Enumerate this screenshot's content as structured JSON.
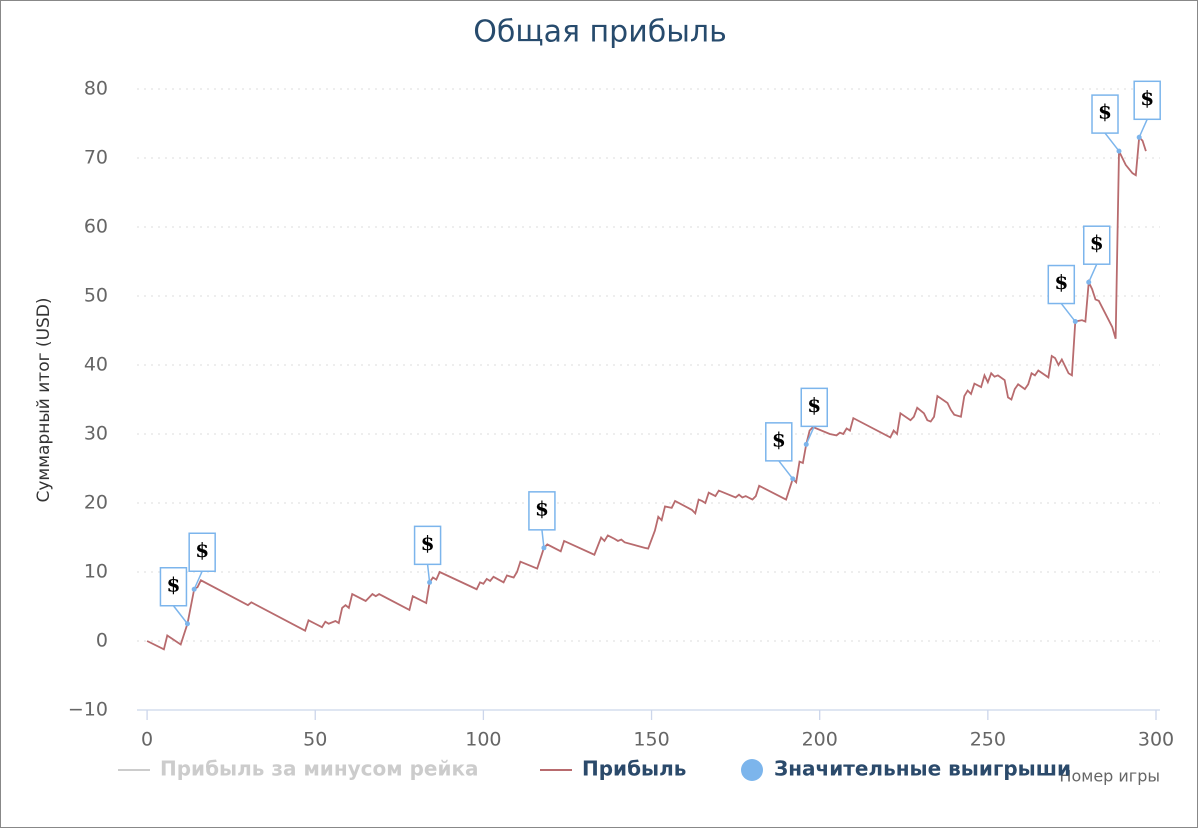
{
  "chart_data": {
    "type": "line",
    "title": "Общая прибыль",
    "y_axis_title": "Суммарный итог (USD)",
    "x_axis_title": "Номер игры",
    "xlim": [
      -3,
      300
    ],
    "xticks": [
      0,
      50,
      100,
      150,
      200,
      250,
      300
    ],
    "ylim": [
      -10,
      80
    ],
    "yticks": [
      {
        "value": -10,
        "label": "−10"
      },
      0,
      10,
      20,
      30,
      40,
      50,
      60,
      70,
      80
    ],
    "grid": true,
    "legend": "bottom",
    "series": [
      {
        "name": "Прибыль за минусом рейка",
        "type": "line",
        "color": "#cccccc",
        "visible": false,
        "x": [],
        "values": []
      },
      {
        "name": "Прибыль",
        "type": "line",
        "color": "#b86b6e",
        "visible": true,
        "x": [
          0,
          5,
          6,
          10,
          12,
          14,
          15,
          16,
          30,
          31,
          47,
          48,
          50,
          52,
          53,
          54,
          56,
          57,
          58,
          59,
          60,
          61,
          65,
          67,
          68,
          69,
          78,
          79,
          83,
          84,
          85,
          86,
          87,
          98,
          99,
          100,
          101,
          102,
          103,
          106,
          107,
          109,
          110,
          111,
          116,
          118,
          119,
          123,
          124,
          133,
          135,
          136,
          137,
          139,
          140,
          141,
          142,
          148,
          149,
          151,
          152,
          153,
          154,
          156,
          157,
          162,
          163,
          164,
          165,
          166,
          167,
          169,
          170,
          175,
          176,
          177,
          178,
          180,
          181,
          182,
          190,
          192,
          193,
          194,
          195,
          196,
          197,
          198,
          203,
          205,
          206,
          207,
          208,
          209,
          210,
          221,
          222,
          223,
          224,
          227,
          228,
          229,
          231,
          232,
          233,
          234,
          235,
          238,
          239,
          240,
          242,
          243,
          244,
          245,
          246,
          248,
          249,
          250,
          251,
          252,
          253,
          255,
          256,
          257,
          258,
          259,
          261,
          262,
          263,
          264,
          265,
          268,
          269,
          270,
          271,
          272,
          274,
          275,
          276,
          278,
          279,
          280,
          281,
          282,
          283,
          287,
          288,
          289,
          291,
          293,
          294,
          295,
          296,
          297
        ],
        "values": [
          0,
          -1.2,
          0.8,
          -0.5,
          2.5,
          7.5,
          7.8,
          8.8,
          5.2,
          5.6,
          1.5,
          3,
          2.5,
          2,
          2.8,
          2.5,
          2.9,
          2.6,
          4.8,
          5.2,
          4.8,
          6.8,
          5.8,
          6.8,
          6.5,
          6.8,
          4.5,
          6.5,
          5.5,
          8.5,
          9.2,
          8.9,
          10,
          7.5,
          8.5,
          8.3,
          9,
          8.7,
          9.3,
          8.5,
          9.5,
          9.2,
          10,
          11.5,
          10.5,
          13.5,
          14,
          13,
          14.5,
          12.5,
          15,
          14.5,
          15.3,
          14.8,
          14.5,
          14.7,
          14.3,
          13.5,
          13.4,
          16,
          18,
          17.5,
          19.5,
          19.3,
          20.3,
          19,
          18.5,
          20.5,
          20.3,
          20,
          21.5,
          21,
          21.8,
          20.8,
          21.2,
          20.8,
          21,
          20.5,
          21,
          22.5,
          20.5,
          23.5,
          23,
          26,
          25.8,
          28.5,
          30.5,
          31,
          30,
          29.8,
          30.2,
          30,
          30.8,
          30.5,
          32.3,
          29.5,
          30.5,
          30,
          33,
          32,
          32.5,
          33.8,
          33,
          32,
          31.8,
          32.5,
          35.5,
          34.5,
          33.5,
          32.8,
          32.5,
          35.5,
          36.3,
          35.8,
          37.3,
          36.8,
          38.5,
          37.5,
          38.8,
          38.3,
          38.5,
          37.8,
          35.3,
          35,
          36.5,
          37.2,
          36.5,
          37.2,
          38.8,
          38.5,
          39.2,
          38.2,
          41.3,
          41,
          40,
          40.8,
          38.8,
          38.5,
          46.3,
          46.5,
          46.3,
          52,
          51,
          49.5,
          49.3,
          45.5,
          43.8,
          71,
          69,
          67.8,
          67.5,
          73,
          72.5,
          71
        ]
      },
      {
        "name": "Значительные выигрыши",
        "type": "scatter",
        "color": "#7cb5ec",
        "visible": true,
        "flag_label": "$",
        "x": [
          12,
          14,
          84,
          118,
          192,
          196,
          276,
          280,
          289,
          295
        ],
        "values": [
          2.5,
          7.5,
          8.5,
          13.5,
          23.5,
          28.5,
          46.3,
          52,
          71,
          73
        ]
      }
    ]
  }
}
